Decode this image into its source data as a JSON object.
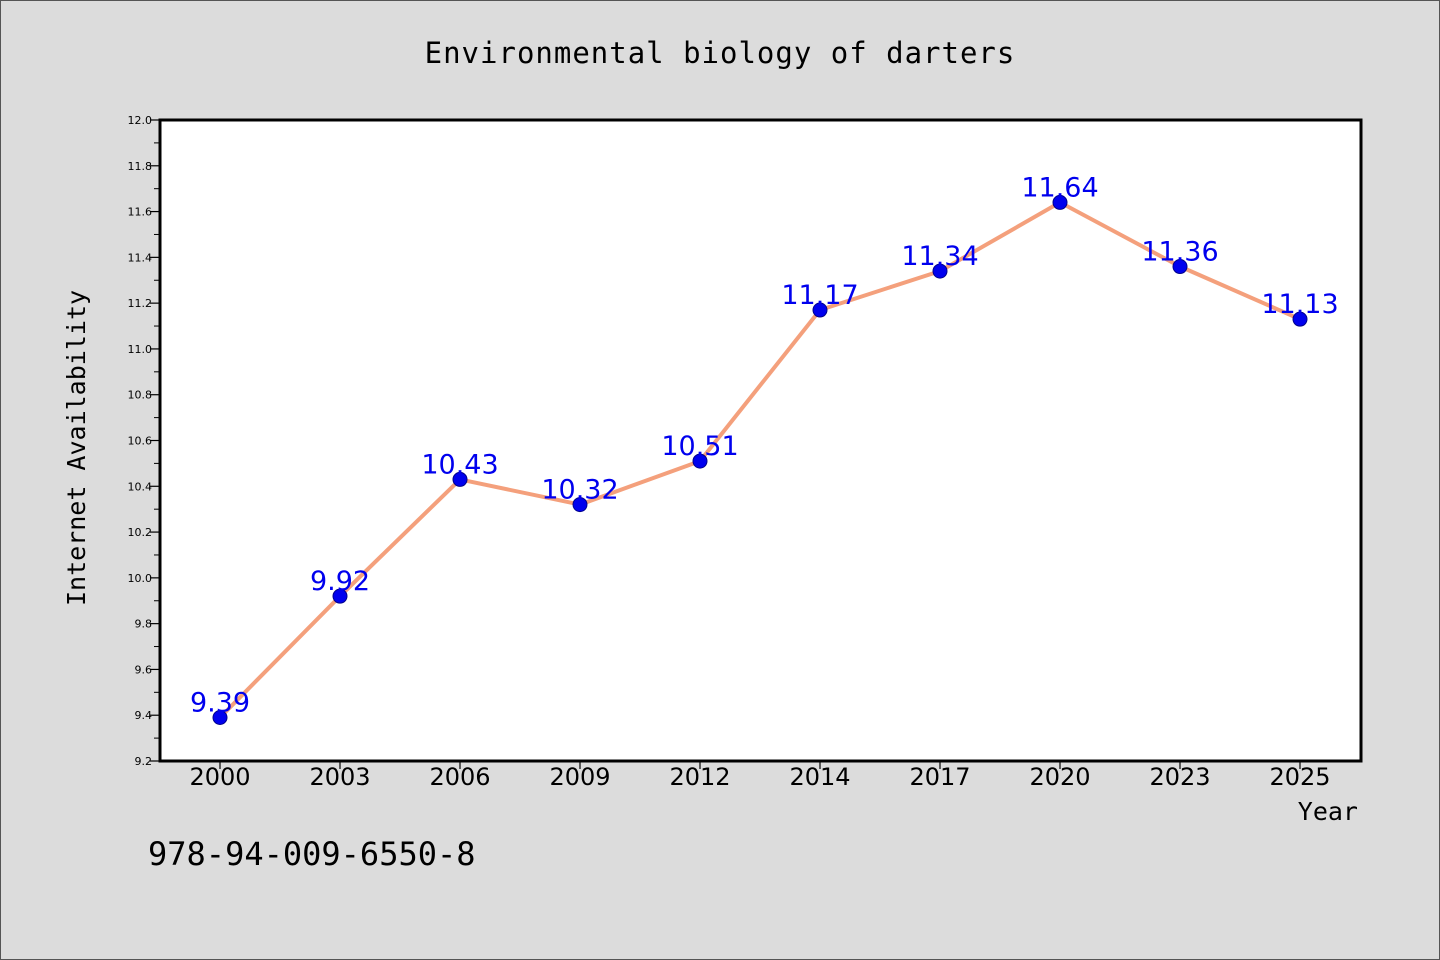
{
  "chart_data": {
    "type": "line",
    "title": "Environmental biology of darters",
    "xlabel": "Year",
    "ylabel": "Internet Availability",
    "categories": [
      "2000",
      "2003",
      "2006",
      "2009",
      "2012",
      "2014",
      "2017",
      "2020",
      "2023",
      "2025"
    ],
    "series": [
      {
        "values": [
          9.39,
          9.92,
          10.43,
          10.32,
          10.51,
          11.17,
          11.34,
          11.64,
          11.36,
          11.13
        ]
      }
    ],
    "data_labels": [
      "9.39",
      "9.92",
      "10.43",
      "10.32",
      "10.51",
      "11.17",
      "11.34",
      "11.64",
      "11.36",
      "11.13"
    ],
    "ylim": [
      9.2,
      12.0
    ],
    "yticks": [
      "9.2",
      "9.4",
      "9.6",
      "9.8",
      "10.0",
      "10.2",
      "10.4",
      "10.6",
      "10.8",
      "11.0",
      "11.2",
      "11.4",
      "11.6",
      "11.8",
      "12.0"
    ],
    "grid": false,
    "colors": {
      "line": "#f4a07c",
      "marker": "#0000ee",
      "label": "#0000ee",
      "background": "#dcdcdc",
      "plot_area": "#ffffff"
    }
  },
  "footer": {
    "isbn": "978-94-009-6550-8"
  }
}
